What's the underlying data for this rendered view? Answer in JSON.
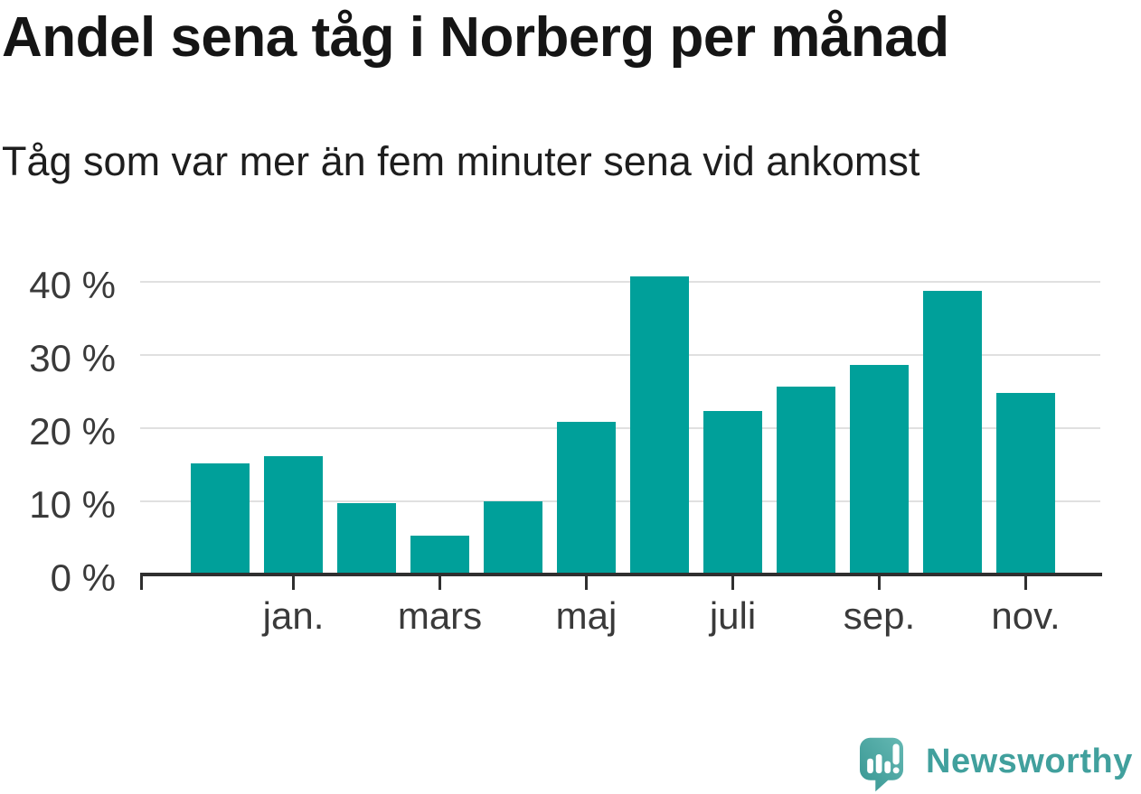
{
  "header": {
    "title": "Andel sena tåg i Norberg per månad",
    "subtitle": "Tåg som var mer än fem minuter sena vid ankomst"
  },
  "chart_data": {
    "type": "bar",
    "title": "Andel sena tåg i Norberg per månad",
    "subtitle": "Tåg som var mer än fem minuter sena vid ankomst",
    "unit": "%",
    "values": [
      15.2,
      16.2,
      9.7,
      5.3,
      10.0,
      20.9,
      40.7,
      22.3,
      25.7,
      28.7,
      38.8,
      24.8
    ],
    "x_tick_labels": [
      "jan.",
      "mars",
      "maj",
      "juli",
      "sep.",
      "nov."
    ],
    "x_tick_bar_indexes": [
      1,
      3,
      5,
      7,
      9,
      11
    ],
    "y_tick_labels": [
      "0 %",
      "10 %",
      "20 %",
      "30 %",
      "40 %"
    ],
    "y_tick_values": [
      0,
      10,
      20,
      30,
      40
    ],
    "ylim": [
      0,
      44
    ],
    "grid": "horizontal-only",
    "legend": "none",
    "bar_color": "#00a09a",
    "grid_color": "#e0e0e0",
    "axis_color": "#2f2f2f",
    "tick_label_color": "#3a3a3a"
  },
  "footer": {
    "brand": "Newsworthy",
    "brand_color": "#41a09d",
    "logo_icon": "speech-bubble-with-bar-chart-and-exclamation",
    "logo_gradient": [
      "#65b8b3",
      "#379692"
    ]
  }
}
